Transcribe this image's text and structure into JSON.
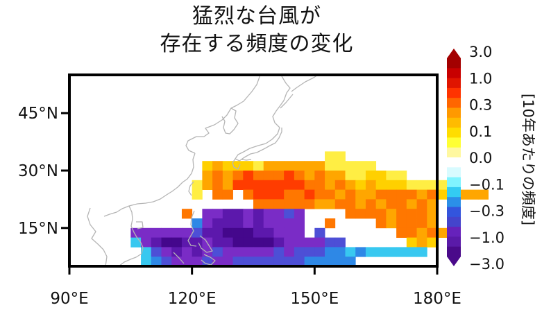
{
  "title": {
    "line1": "猛烈な台風が",
    "line2": "存在する頻度の変化"
  },
  "map": {
    "lon_range": [
      90,
      180
    ],
    "lat_range": [
      5,
      55
    ],
    "x_ticks": [
      {
        "lon": 90,
        "label": "90°E"
      },
      {
        "lon": 120,
        "label": "120°E"
      },
      {
        "lon": 150,
        "label": "150°E"
      },
      {
        "lon": 180,
        "label": "180°E"
      }
    ],
    "y_ticks": [
      {
        "lat": 45,
        "label": "45°N"
      },
      {
        "lat": 30,
        "label": "30°N"
      },
      {
        "lat": 15,
        "label": "15°N"
      }
    ],
    "coastline_color": "#b5b5b5",
    "frame_color": "#000000"
  },
  "colorbar": {
    "unit_label": "[10年あたりの頻度]",
    "tick_labels": [
      "3.0",
      "1.0",
      "0.3",
      "0.1",
      "0.0",
      "−0.1",
      "−0.3",
      "−1.0",
      "−3.0"
    ],
    "colors_top_to_bottom": [
      "#a30000",
      "#c80000",
      "#e01500",
      "#ff3300",
      "#ff6600",
      "#ff9900",
      "#ffbb00",
      "#ffdd00",
      "#ffff33",
      "#fff8a0",
      "#ffffff",
      "#d8fbff",
      "#80f4ff",
      "#33ccf2",
      "#2b8fe8",
      "#3355dd",
      "#4444cc",
      "#6622bb",
      "#5a1aa8",
      "#4a0a8a"
    ]
  },
  "grid": {
    "cell_deg": 2.5,
    "color_classes": {
      "p5": "#e01500",
      "p4": "#ff3c00",
      "p3": "#ff7700",
      "p2": "#ffa600",
      "p1": "#ffd000",
      "p0": "#ffee44",
      "n0": "#38c8f0",
      "n1": "#2e88e6",
      "n2": "#4d4fd6",
      "n3": "#7a2cc6",
      "n4": "#5c18ac",
      "n5": "#44078c"
    },
    "rows": [
      {
        "lat": 33.75,
        "cells": [
          {
            "lon_start": 152.5,
            "classes": [
              "p0",
              "p0"
            ]
          }
        ]
      },
      {
        "lat": 31.25,
        "cells": [
          {
            "lon_start": 122.5,
            "classes": [
              "p1",
              "p2",
              "p1",
              "p1",
              "p1",
              "p0",
              "p2",
              "p2",
              "p2",
              "p2",
              "p2",
              "p2",
              "p0",
              "p0",
              "p0",
              "p0",
              "p0"
            ]
          }
        ]
      },
      {
        "lat": 28.75,
        "cells": [
          {
            "lon_start": 122.5,
            "classes": [
              "p2",
              "p3",
              "p2",
              "p3",
              "p4",
              "p3",
              "p3",
              "p3",
              "p4",
              "p3",
              "p2",
              "p3",
              "p2",
              "p2",
              "p0",
              "p0",
              "p1",
              "p1",
              "p0",
              "p0"
            ]
          }
        ]
      },
      {
        "lat": 26.25,
        "cells": [
          {
            "lon_start": 120.0,
            "classes": [
              "p0",
              "p2",
              "p3",
              "p2",
              "p4",
              "p4",
              "p4",
              "p4",
              "p4",
              "p4",
              "p4",
              "p3",
              "p3",
              "p2",
              "p3",
              "p2",
              "p1",
              "p2",
              "p1",
              "p1",
              "p1",
              "p0",
              "p0",
              "p0",
              "p0"
            ]
          }
        ]
      },
      {
        "lat": 23.75,
        "cells": [
          {
            "lon_start": 120.0,
            "classes": [
              "p0"
            ]
          },
          {
            "lon_start": 125.0,
            "classes": [
              "p3",
              "p3"
            ]
          },
          {
            "lon_start": 132.5,
            "classes": [
              "p3",
              "p4",
              "p4",
              "p4",
              "p3",
              "p3",
              "p4",
              "p3",
              "p3",
              "p2",
              "p3",
              "p2",
              "p2",
              "p3",
              "p3",
              "p3",
              "p3",
              "p2",
              "p3",
              "p1",
              "p2",
              "p2",
              "p2",
              "p2"
            ]
          }
        ]
      },
      {
        "lat": 21.25,
        "cells": [
          {
            "lon_start": 135.0,
            "classes": [
              "p3",
              "p3",
              "p3",
              "p3",
              "p3",
              "p3",
              "p2",
              "p2",
              "p3",
              "p3",
              "p2"
            ]
          },
          {
            "lon_start": 162.5,
            "classes": [
              "p3",
              "p2",
              "p3",
              "p3",
              "p2",
              "p3",
              "p2"
            ]
          }
        ]
      },
      {
        "lat": 18.75,
        "cells": [
          {
            "lon_start": 117.5,
            "classes": [
              "p3"
            ]
          },
          {
            "lon_start": 122.5,
            "classes": [
              "n3",
              "n3",
              "n4",
              "n4",
              "n3",
              "n4",
              "n3",
              "n3"
            ]
          },
          {
            "lon_start": 142.5,
            "classes": [
              "n2",
              "n3"
            ]
          },
          {
            "lon_start": 157.5,
            "classes": [
              "p3",
              "p3",
              "p3",
              "p3",
              "p2",
              "p3",
              "p3",
              "p3",
              "p2"
            ]
          }
        ]
      },
      {
        "lat": 16.25,
        "cells": [
          {
            "lon_start": 120.0,
            "classes": [
              "n1",
              "n3",
              "n4",
              "n4",
              "n4",
              "n3",
              "n4",
              "n3",
              "n3",
              "n3"
            ]
          },
          {
            "lon_start": 145.0,
            "classes": [
              "n3"
            ]
          },
          {
            "lon_start": 152.5,
            "classes": [
              "p3"
            ]
          },
          {
            "lon_start": 165.0,
            "classes": [
              "p3",
              "p2",
              "p3",
              "p3",
              "p3",
              "p2"
            ]
          }
        ]
      },
      {
        "lat": 13.75,
        "cells": [
          {
            "lon_start": 105.0,
            "classes": [
              "n3",
              "n3",
              "n3",
              "n3",
              "n3",
              "n3",
              "n2",
              "n4",
              "n4",
              "n5",
              "n5",
              "n5",
              "n4",
              "n4",
              "n3",
              "n3",
              "n3"
            ]
          },
          {
            "lon_start": 150.0,
            "classes": [
              "n2"
            ]
          },
          {
            "lon_start": 170.0,
            "classes": [
              "p3",
              "p3",
              "p2",
              "p3",
              "p2"
            ]
          }
        ]
      },
      {
        "lat": 11.25,
        "cells": [
          {
            "lon_start": 105.0,
            "classes": [
              "n0",
              "n3",
              "n4",
              "n5",
              "n5",
              "n4",
              "n4",
              "n3",
              "n4",
              "n4",
              "n5",
              "n5",
              "n5",
              "n5",
              "n4",
              "n3",
              "n3",
              "n3",
              "n3",
              "n2",
              "n2"
            ]
          },
          {
            "lon_start": 172.5,
            "classes": [
              "p1",
              "p2",
              "p1"
            ]
          }
        ]
      },
      {
        "lat": 8.75,
        "cells": [
          {
            "lon_start": 107.5,
            "classes": [
              "n0",
              "n2",
              "n3",
              "n4",
              "n3",
              "n4",
              "n3",
              "n2",
              "n3",
              "n3",
              "n3",
              "n3",
              "n3",
              "n2",
              "n3",
              "n2",
              "n2",
              "n2",
              "n1",
              "n1",
              "n0",
              "n1",
              "n0",
              "n0",
              "n0",
              "n0",
              "n0",
              "n0"
            ]
          }
        ]
      },
      {
        "lat": 6.25,
        "cells": [
          {
            "lon_start": 107.5,
            "classes": [
              "n0",
              "n1",
              "n2",
              "n3",
              "n3",
              "n3",
              "n2",
              "n3",
              "n3",
              "n2",
              "n2",
              "n2",
              "n2",
              "n2",
              "n2",
              "n2",
              "n1",
              "n1",
              "n1",
              "n1",
              "n1"
            ]
          }
        ]
      }
    ]
  }
}
